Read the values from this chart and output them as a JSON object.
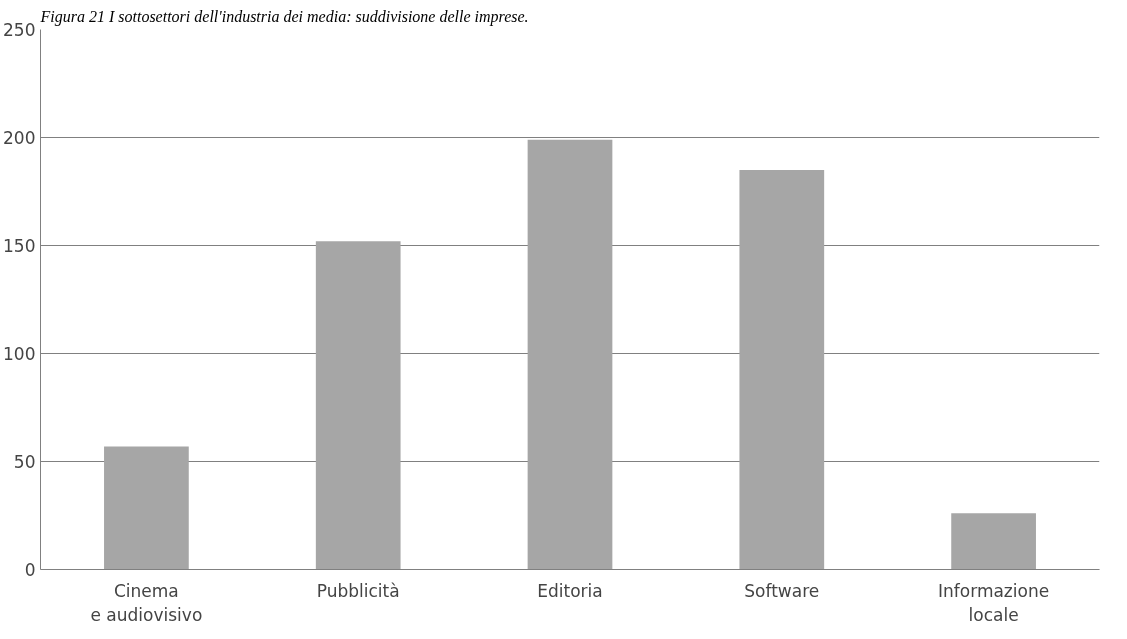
{
  "chart_data": {
    "type": "bar",
    "title": "Figura 21 I sottosettori dell'industria dei media: suddivisione delle imprese.",
    "categories": [
      "Cinema e audiovisivo",
      "Pubblicità",
      "Editoria",
      "Software",
      "Informazione locale"
    ],
    "values": [
      57,
      152,
      199,
      185,
      26
    ],
    "color": "#a6a6a6",
    "ylim": [
      0,
      250
    ],
    "yticks": [
      0,
      50,
      100,
      150,
      200,
      250
    ],
    "grid": "y"
  }
}
